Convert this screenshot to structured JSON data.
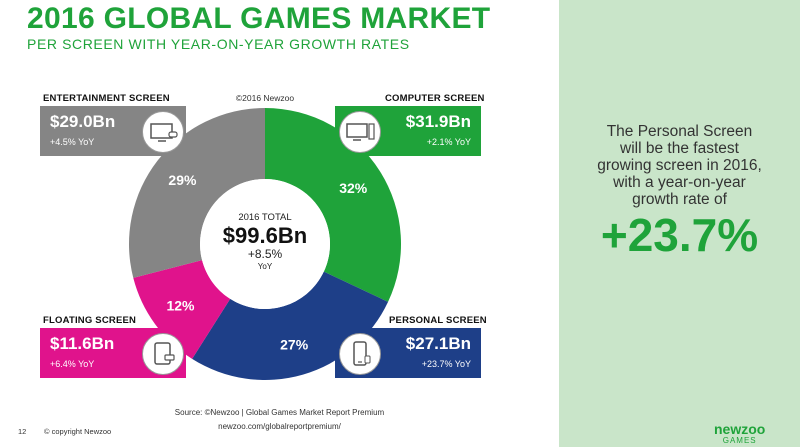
{
  "header": {
    "title": "2016 GLOBAL GAMES MARKET",
    "subtitle": "PER SCREEN WITH YEAR-ON-YEAR GROWTH RATES"
  },
  "chart_data": {
    "type": "pie",
    "donut": true,
    "copyright": "©2016 Newzoo",
    "center": {
      "label": "2016 TOTAL",
      "value": "$99.6Bn",
      "growth": "+8.5%",
      "growth_unit": "YoY"
    },
    "slices": [
      {
        "name": "COMPUTER SCREEN",
        "percent": 32,
        "percent_label": "32%",
        "value": "$31.9Bn",
        "growth": "+2.1% YoY",
        "color": "#1fa33a",
        "icon": "monitor-icon"
      },
      {
        "name": "PERSONAL SCREEN",
        "percent": 27,
        "percent_label": "27%",
        "value": "$27.1Bn",
        "growth": "+23.7% YoY",
        "color": "#1e3f88",
        "icon": "smartphone-icon"
      },
      {
        "name": "FLOATING SCREEN",
        "percent": 12,
        "percent_label": "12%",
        "value": "$11.6Bn",
        "growth": "+6.4% YoY",
        "color": "#e0138c",
        "icon": "tablet-icon"
      },
      {
        "name": "ENTERTAINMENT SCREEN",
        "percent": 29,
        "percent_label": "29%",
        "value": "$29.0Bn",
        "growth": "+4.5% YoY",
        "color": "#858585",
        "icon": "tv-console-icon"
      }
    ]
  },
  "side_panel": {
    "lines": [
      "The Personal Screen",
      "will be the fastest",
      "growing screen in 2016,",
      "with a year-on-year",
      "growth rate of"
    ],
    "highlight": "+23.7%"
  },
  "footer": {
    "page_number": "12",
    "copyright": "© copyright Newzoo",
    "source": "Source: ©Newzoo | Global Games Market Report Premium",
    "url": "newzoo.com/globalreportpremium/"
  },
  "logo": {
    "word": "newzoo",
    "sub": "GAMES"
  }
}
